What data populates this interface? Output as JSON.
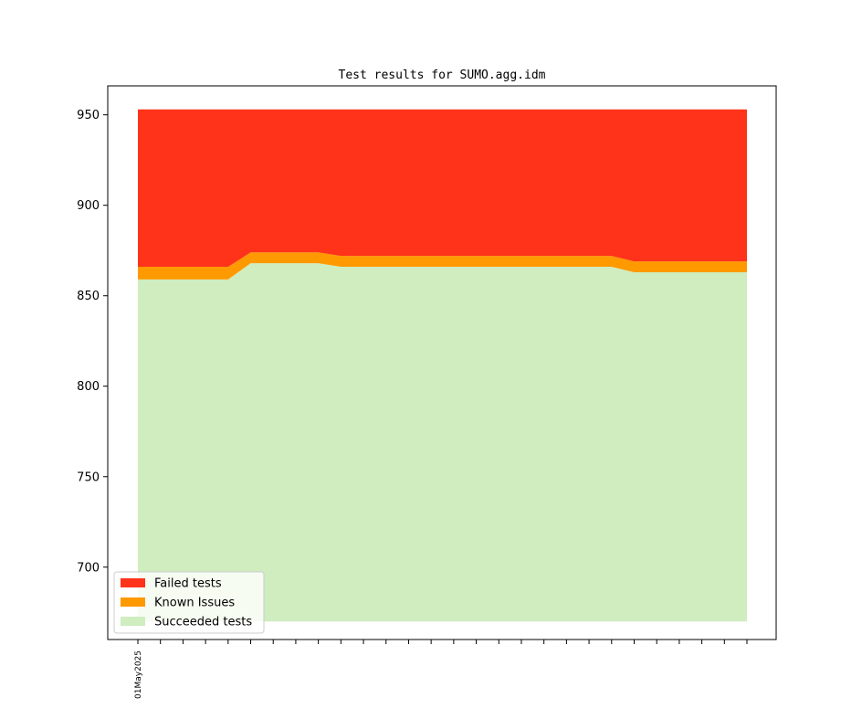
{
  "chart_data": {
    "type": "area",
    "title": "Test results for SUMO.agg.idm",
    "xlabel": "",
    "ylabel": "",
    "x_tick_labels": [
      "01May2025"
    ],
    "num_points": 28,
    "ylim": [
      660,
      966
    ],
    "yticks": [
      700,
      750,
      800,
      850,
      900,
      950
    ],
    "legend": {
      "placement": "lower-left"
    },
    "series": [
      {
        "name": "Succeeded tests",
        "color": "#cfedbf",
        "values": [
          859,
          859,
          859,
          859,
          859,
          868,
          868,
          868,
          868,
          866,
          866,
          866,
          866,
          866,
          866,
          866,
          866,
          866,
          866,
          866,
          866,
          866,
          863,
          863,
          863,
          863,
          863,
          863
        ]
      },
      {
        "name": "Known Issues",
        "color": "#ff9900",
        "values": [
          7,
          7,
          7,
          7,
          7,
          6,
          6,
          6,
          6,
          6,
          6,
          6,
          6,
          6,
          6,
          6,
          6,
          6,
          6,
          6,
          6,
          6,
          6,
          6,
          6,
          6,
          6,
          6
        ]
      },
      {
        "name": "Failed tests",
        "color": "#ff331a",
        "values": [
          87,
          87,
          87,
          87,
          87,
          79,
          79,
          79,
          79,
          81,
          81,
          81,
          81,
          81,
          81,
          81,
          81,
          81,
          81,
          81,
          81,
          81,
          84,
          84,
          84,
          84,
          84,
          84
        ]
      }
    ],
    "stack_baseline": 670,
    "grid": false
  }
}
